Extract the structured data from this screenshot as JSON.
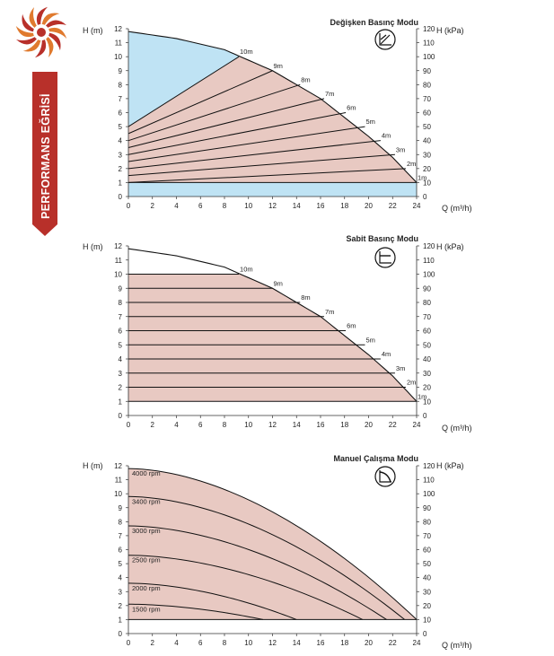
{
  "brand": {
    "side_label": "PERFORMANS EĞRİSİ",
    "accent": "#b8302a",
    "icon": "sun-swirl-logo"
  },
  "colors": {
    "blue_fill": "#bfe3f4",
    "pink_fill": "#e8c9c2",
    "line": "#111111"
  },
  "chart_data": [
    {
      "type": "line",
      "title": "Değişken Basınç Modu",
      "mode_icon": "variable-pressure-icon",
      "xlabel": "Q (m³/h)",
      "ylabel": "H (m)",
      "y2label": "H (kPa)",
      "xlim": [
        0,
        24
      ],
      "ylim": [
        0,
        12
      ],
      "y2lim": [
        0,
        120
      ],
      "xticks": [
        0,
        2,
        4,
        6,
        8,
        10,
        12,
        14,
        16,
        18,
        20,
        22,
        24
      ],
      "yticks": [
        0,
        1,
        2,
        3,
        4,
        5,
        6,
        7,
        8,
        9,
        10,
        11,
        12
      ],
      "y2ticks": [
        0,
        10,
        20,
        30,
        40,
        50,
        60,
        70,
        80,
        90,
        100,
        110,
        120
      ],
      "max_curve": {
        "q": [
          0,
          4,
          8,
          12,
          16,
          20,
          22,
          24
        ],
        "h": [
          11.8,
          11.3,
          10.5,
          9.0,
          7.0,
          4.3,
          2.8,
          1.0
        ]
      },
      "curves": [
        {
          "label": "10m",
          "h_at_zero": 5.0,
          "end": [
            9.2,
            10.0
          ]
        },
        {
          "label": "9m",
          "h_at_zero": 4.5,
          "end": [
            12.0,
            9.0
          ]
        },
        {
          "label": "8m",
          "h_at_zero": 4.0,
          "end": [
            14.3,
            8.0
          ]
        },
        {
          "label": "7m",
          "h_at_zero": 3.5,
          "end": [
            16.3,
            7.0
          ]
        },
        {
          "label": "6m",
          "h_at_zero": 3.0,
          "end": [
            18.1,
            6.0
          ]
        },
        {
          "label": "5m",
          "h_at_zero": 2.5,
          "end": [
            19.7,
            5.0
          ]
        },
        {
          "label": "4m",
          "h_at_zero": 2.0,
          "end": [
            21.0,
            4.0
          ]
        },
        {
          "label": "3m",
          "h_at_zero": 1.5,
          "end": [
            22.2,
            3.0
          ]
        },
        {
          "label": "2m",
          "h_at_zero": 1.0,
          "end": [
            23.1,
            2.0
          ]
        },
        {
          "label": "1m",
          "h_at_zero": 1.0,
          "end": [
            24.0,
            1.0
          ]
        }
      ]
    },
    {
      "type": "line",
      "title": "Sabit Basınç Modu",
      "mode_icon": "constant-pressure-icon",
      "xlabel": "Q (m³/h)",
      "ylabel": "H (m)",
      "y2label": "H (kPa)",
      "xlim": [
        0,
        24
      ],
      "ylim": [
        0,
        12
      ],
      "y2lim": [
        0,
        120
      ],
      "xticks": [
        0,
        2,
        4,
        6,
        8,
        10,
        12,
        14,
        16,
        18,
        20,
        22,
        24
      ],
      "yticks": [
        0,
        1,
        2,
        3,
        4,
        5,
        6,
        7,
        8,
        9,
        10,
        11,
        12
      ],
      "y2ticks": [
        0,
        10,
        20,
        30,
        40,
        50,
        60,
        70,
        80,
        90,
        100,
        110,
        120
      ],
      "max_curve": {
        "q": [
          0,
          4,
          8,
          12,
          16,
          20,
          22,
          24
        ],
        "h": [
          11.8,
          11.3,
          10.5,
          9.0,
          7.0,
          4.3,
          2.8,
          1.0
        ]
      },
      "curves": [
        {
          "label": "10m",
          "h": 10,
          "end_q": 9.2
        },
        {
          "label": "9m",
          "h": 9,
          "end_q": 12.0
        },
        {
          "label": "8m",
          "h": 8,
          "end_q": 14.3
        },
        {
          "label": "7m",
          "h": 7,
          "end_q": 16.3
        },
        {
          "label": "6m",
          "h": 6,
          "end_q": 18.1
        },
        {
          "label": "5m",
          "h": 5,
          "end_q": 19.7
        },
        {
          "label": "4m",
          "h": 4,
          "end_q": 21.0
        },
        {
          "label": "3m",
          "h": 3,
          "end_q": 22.2
        },
        {
          "label": "2m",
          "h": 2,
          "end_q": 23.1
        },
        {
          "label": "1m",
          "h": 1,
          "end_q": 24.0
        }
      ]
    },
    {
      "type": "line",
      "title": "Manuel Çalışma Modu",
      "mode_icon": "manual-mode-icon",
      "xlabel": "Q (m³/h)",
      "ylabel": "H (m)",
      "y2label": "H (kPa)",
      "xlim": [
        0,
        24
      ],
      "ylim": [
        0,
        12
      ],
      "y2lim": [
        0,
        120
      ],
      "xticks": [
        0,
        2,
        4,
        6,
        8,
        10,
        12,
        14,
        16,
        18,
        20,
        22,
        24
      ],
      "yticks": [
        0,
        1,
        2,
        3,
        4,
        5,
        6,
        7,
        8,
        9,
        10,
        11,
        12
      ],
      "y2ticks": [
        0,
        10,
        20,
        30,
        40,
        50,
        60,
        70,
        80,
        90,
        100,
        110,
        120
      ],
      "min_head": 1,
      "series": [
        {
          "name": "4000 rpm",
          "h0": 11.8,
          "q_end": 24.0
        },
        {
          "name": "3400 rpm",
          "h0": 9.8,
          "q_end": 23.0
        },
        {
          "name": "3000 rpm",
          "h0": 7.7,
          "q_end": 21.5
        },
        {
          "name": "2500 rpm",
          "h0": 5.6,
          "q_end": 19.5
        },
        {
          "name": "2000 rpm",
          "h0": 3.6,
          "q_end": 14.0
        },
        {
          "name": "1500 rpm",
          "h0": 2.1,
          "q_end": 11.2
        }
      ]
    }
  ]
}
